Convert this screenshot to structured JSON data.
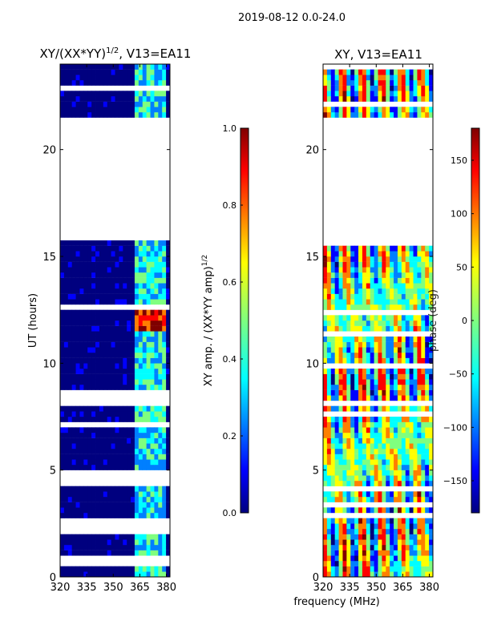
{
  "figure": {
    "suptitle": "2019-08-12 0.0-24.0",
    "shared_xlabel": "frequency (MHz)"
  },
  "chart_data": [
    {
      "type": "heatmap",
      "title_main": "XY/(XX*YY)",
      "title_sup": "1/2",
      "title_tail": ", V13=EA11",
      "xlabel": "",
      "ylabel": "UT (hours)",
      "xlim": [
        320,
        382
      ],
      "ylim": [
        0,
        24
      ],
      "xticks": [
        320,
        335,
        350,
        365,
        380
      ],
      "yticks": [
        0,
        5,
        10,
        15,
        20
      ],
      "gaps_hours": [
        [
          15.8,
          21.6
        ]
      ],
      "bright_band_mhz": [
        361,
        380
      ],
      "peak_band_hours": [
        11.6,
        12.6
      ],
      "colorbar": {
        "label_main": "XY amp. / (XX*YY amp)",
        "label_sup": "1/2",
        "range": [
          0.0,
          1.0
        ],
        "ticks": [
          "0.0",
          "0.2",
          "0.4",
          "0.6",
          "0.8",
          "1.0"
        ],
        "colormap": "jet"
      }
    },
    {
      "type": "heatmap",
      "title": "XY, V13=EA11",
      "xlabel": "frequency (MHz)",
      "ylabel": "",
      "xlim": [
        320,
        382
      ],
      "ylim": [
        0,
        24
      ],
      "xticks": [
        320,
        335,
        350,
        365,
        380
      ],
      "yticks": [
        0,
        5,
        10,
        15,
        20
      ],
      "gaps_hours": [
        [
          15.8,
          21.6
        ]
      ],
      "colorbar": {
        "label": "phase (deg)",
        "range": [
          -180,
          180
        ],
        "ticks": [
          "150",
          "100",
          "50",
          "0",
          "−50",
          "−100",
          "−150"
        ],
        "colormap": "jet"
      }
    }
  ],
  "colors": {
    "jet": [
      "#00007f",
      "#0000ff",
      "#007fff",
      "#00ffff",
      "#7fff7f",
      "#ffff00",
      "#ff7f00",
      "#ff0000",
      "#7f0000"
    ]
  }
}
